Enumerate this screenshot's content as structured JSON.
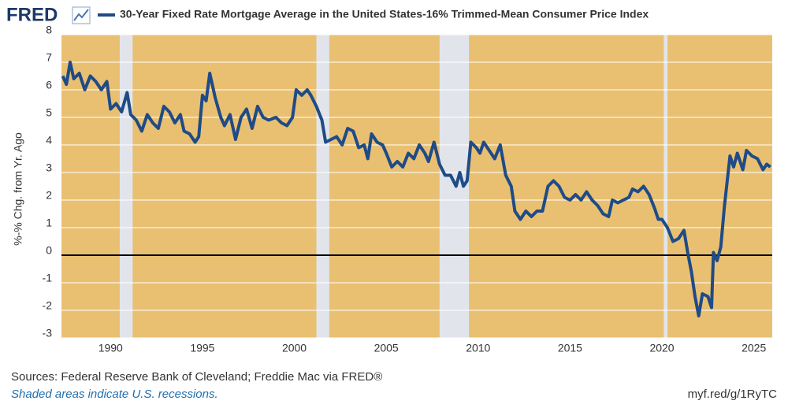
{
  "logo": "FRED",
  "chart_data": {
    "type": "line",
    "y_label": "%-% Chg. from Yr. Ago",
    "x": [
      1987.4,
      1987.6,
      1987.8,
      1988.0,
      1988.3,
      1988.6,
      1988.9,
      1989.2,
      1989.5,
      1989.8,
      1990.0,
      1990.3,
      1990.6,
      1990.9,
      1991.1,
      1991.4,
      1991.7,
      1992.0,
      1992.3,
      1992.6,
      1992.9,
      1993.2,
      1993.5,
      1993.8,
      1994.0,
      1994.3,
      1994.6,
      1994.8,
      1995.0,
      1995.2,
      1995.4,
      1995.7,
      1996.0,
      1996.2,
      1996.5,
      1996.8,
      1997.1,
      1997.4,
      1997.7,
      1998.0,
      1998.3,
      1998.6,
      1999.0,
      1999.3,
      1999.6,
      1999.9,
      2000.1,
      2000.4,
      2000.7,
      2000.9,
      2001.2,
      2001.5,
      2001.7,
      2002.0,
      2002.3,
      2002.6,
      2002.9,
      2003.2,
      2003.5,
      2003.8,
      2004.0,
      2004.2,
      2004.5,
      2004.8,
      2005.0,
      2005.3,
      2005.6,
      2005.9,
      2006.2,
      2006.5,
      2006.8,
      2007.1,
      2007.3,
      2007.6,
      2007.9,
      2008.2,
      2008.5,
      2008.8,
      2009.0,
      2009.2,
      2009.4,
      2009.6,
      2009.9,
      2010.1,
      2010.3,
      2010.6,
      2010.9,
      2011.2,
      2011.5,
      2011.8,
      2012.0,
      2012.3,
      2012.6,
      2012.9,
      2013.2,
      2013.5,
      2013.8,
      2014.1,
      2014.4,
      2014.7,
      2015.0,
      2015.3,
      2015.6,
      2015.9,
      2016.2,
      2016.5,
      2016.8,
      2017.1,
      2017.3,
      2017.6,
      2017.9,
      2018.2,
      2018.4,
      2018.7,
      2019.0,
      2019.3,
      2019.6,
      2019.8,
      2020.0,
      2020.3,
      2020.6,
      2020.9,
      2021.2,
      2021.4,
      2021.6,
      2021.8,
      2022.0,
      2022.2,
      2022.5,
      2022.7,
      2022.8,
      2023.0,
      2023.2,
      2023.4,
      2023.7,
      2023.9,
      2024.1,
      2024.4,
      2024.6,
      2024.9,
      2025.2,
      2025.5,
      2025.7,
      2025.9
    ],
    "series": [
      {
        "name": "30-Year Fixed Rate Mortgage Average in the United States-16% Trimmed-Mean Consumer Price Index",
        "color": "#1f4b87",
        "values": [
          6.5,
          6.2,
          7.0,
          6.4,
          6.6,
          6.0,
          6.5,
          6.3,
          6.0,
          6.3,
          5.3,
          5.5,
          5.2,
          5.9,
          5.1,
          4.9,
          4.5,
          5.1,
          4.8,
          4.6,
          5.4,
          5.2,
          4.8,
          5.1,
          4.5,
          4.4,
          4.1,
          4.3,
          5.8,
          5.6,
          6.6,
          5.7,
          5.0,
          4.7,
          5.1,
          4.2,
          5.0,
          5.3,
          4.6,
          5.4,
          5.0,
          4.9,
          5.0,
          4.8,
          4.7,
          5.0,
          6.0,
          5.8,
          6.0,
          5.8,
          5.4,
          4.9,
          4.1,
          4.2,
          4.3,
          4.0,
          4.6,
          4.5,
          3.9,
          4.0,
          3.5,
          4.4,
          4.1,
          4.0,
          3.7,
          3.2,
          3.4,
          3.2,
          3.7,
          3.5,
          4.0,
          3.7,
          3.4,
          4.1,
          3.3,
          2.9,
          2.9,
          2.5,
          3.0,
          2.5,
          2.7,
          4.1,
          3.9,
          3.7,
          4.1,
          3.8,
          3.5,
          4.0,
          2.9,
          2.5,
          1.6,
          1.3,
          1.6,
          1.4,
          1.6,
          1.6,
          2.5,
          2.7,
          2.5,
          2.1,
          2.0,
          2.2,
          2.0,
          2.3,
          2.0,
          1.8,
          1.5,
          1.4,
          2.0,
          1.9,
          2.0,
          2.1,
          2.4,
          2.3,
          2.5,
          2.2,
          1.7,
          1.3,
          1.3,
          1.0,
          0.5,
          0.6,
          0.9,
          0.1,
          -0.6,
          -1.5,
          -2.2,
          -1.4,
          -1.5,
          -1.9,
          0.1,
          -0.2,
          0.3,
          1.8,
          3.6,
          3.2,
          3.7,
          3.1,
          3.8,
          3.6,
          3.5,
          3.1,
          3.3,
          3.2
        ]
      }
    ],
    "recessions": [
      [
        1990.5,
        1991.2
      ],
      [
        2001.2,
        2001.9
      ],
      [
        2007.9,
        2009.5
      ],
      [
        2020.1,
        2020.3
      ]
    ],
    "xlim": [
      1987.33,
      2026.0
    ],
    "xticks": [
      1990,
      1995,
      2000,
      2005,
      2010,
      2015,
      2020,
      2025
    ],
    "ylim": [
      -3,
      8
    ],
    "yticks": [
      -3,
      -2,
      -1,
      0,
      1,
      2,
      3,
      4,
      5,
      6,
      7,
      8
    ],
    "grid": true,
    "zero_line": true,
    "background": "#e9c071",
    "recession_color": "#e1e5eb",
    "source": "Sources: Federal Reserve Bank of Cleveland; Freddie Mac via FRED®",
    "note": "Shaded areas indicate U.S. recessions.",
    "link": "myf.red/g/1RyTC"
  }
}
